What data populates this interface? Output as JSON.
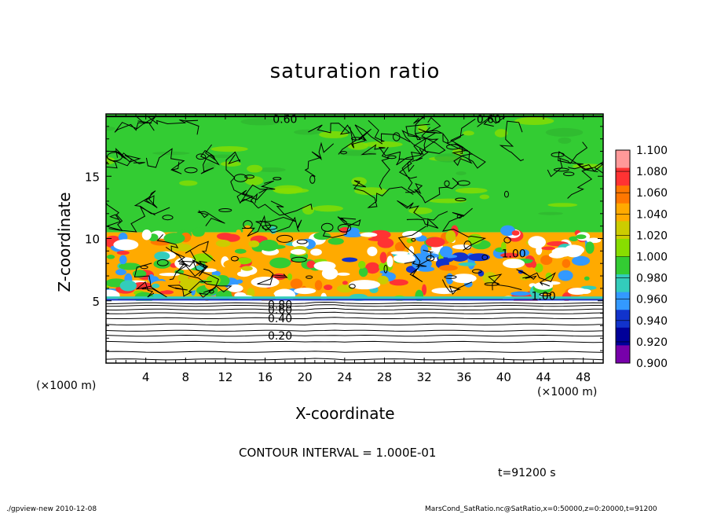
{
  "chart_data": {
    "type": "heatmap",
    "title": "saturation ratio",
    "xlabel": "X-coordinate",
    "ylabel": "Z-coordinate",
    "x_unit_label": "(×1000 m)",
    "y_unit_label": "(×1000 m)",
    "xlim": [
      0,
      50
    ],
    "ylim": [
      0,
      20
    ],
    "x_ticks": [
      4,
      8,
      12,
      16,
      20,
      24,
      28,
      32,
      36,
      40,
      44,
      48
    ],
    "y_ticks": [
      5,
      10,
      15
    ],
    "colorbar": {
      "levels": [
        "1.100",
        "1.080",
        "1.060",
        "1.040",
        "1.020",
        "1.000",
        "0.980",
        "0.960",
        "0.940",
        "0.920",
        "0.900"
      ],
      "colors": [
        "#ff9999",
        "#ff3333",
        "#ff7700",
        "#ffaa00",
        "#cccc00",
        "#88dd00",
        "#33cc33",
        "#33ccbb",
        "#3399ff",
        "#1133cc",
        "#000099",
        "#7700aa"
      ]
    },
    "contour_labels": [
      {
        "text": "0.60",
        "x": 18,
        "z": 19.6
      },
      {
        "text": "0.60",
        "x": 38.5,
        "z": 19.6
      },
      {
        "text": "1.00",
        "x": 41,
        "z": 8.8
      },
      {
        "text": "1.00",
        "x": 44,
        "z": 5.4
      },
      {
        "text": "0.80",
        "x": 17.5,
        "z": 4.7
      },
      {
        "text": "0.60",
        "x": 17.5,
        "z": 4.3
      },
      {
        "text": "0.40",
        "x": 17.5,
        "z": 3.6
      },
      {
        "text": "0.20",
        "x": 17.5,
        "z": 2.2
      }
    ],
    "layers": [
      {
        "z_from": 0,
        "z_to": 5,
        "value": "below 0.80 (subsaturated, white with contours)"
      },
      {
        "z_from": 5,
        "z_to": 10.5,
        "value": "mixed 0.92–1.10 with white patches"
      },
      {
        "z_from": 10.5,
        "z_to": 20,
        "value": "≈1.00"
      }
    ]
  },
  "annotations": {
    "contour_interval": "CONTOUR INTERVAL = 1.000E-01",
    "time": "t=91200 s",
    "footer_left": "./gpview-new  2010-12-08",
    "footer_right": "MarsCond_SatRatio.nc@SatRatio,x=0:50000,z=0:20000,t=91200"
  }
}
